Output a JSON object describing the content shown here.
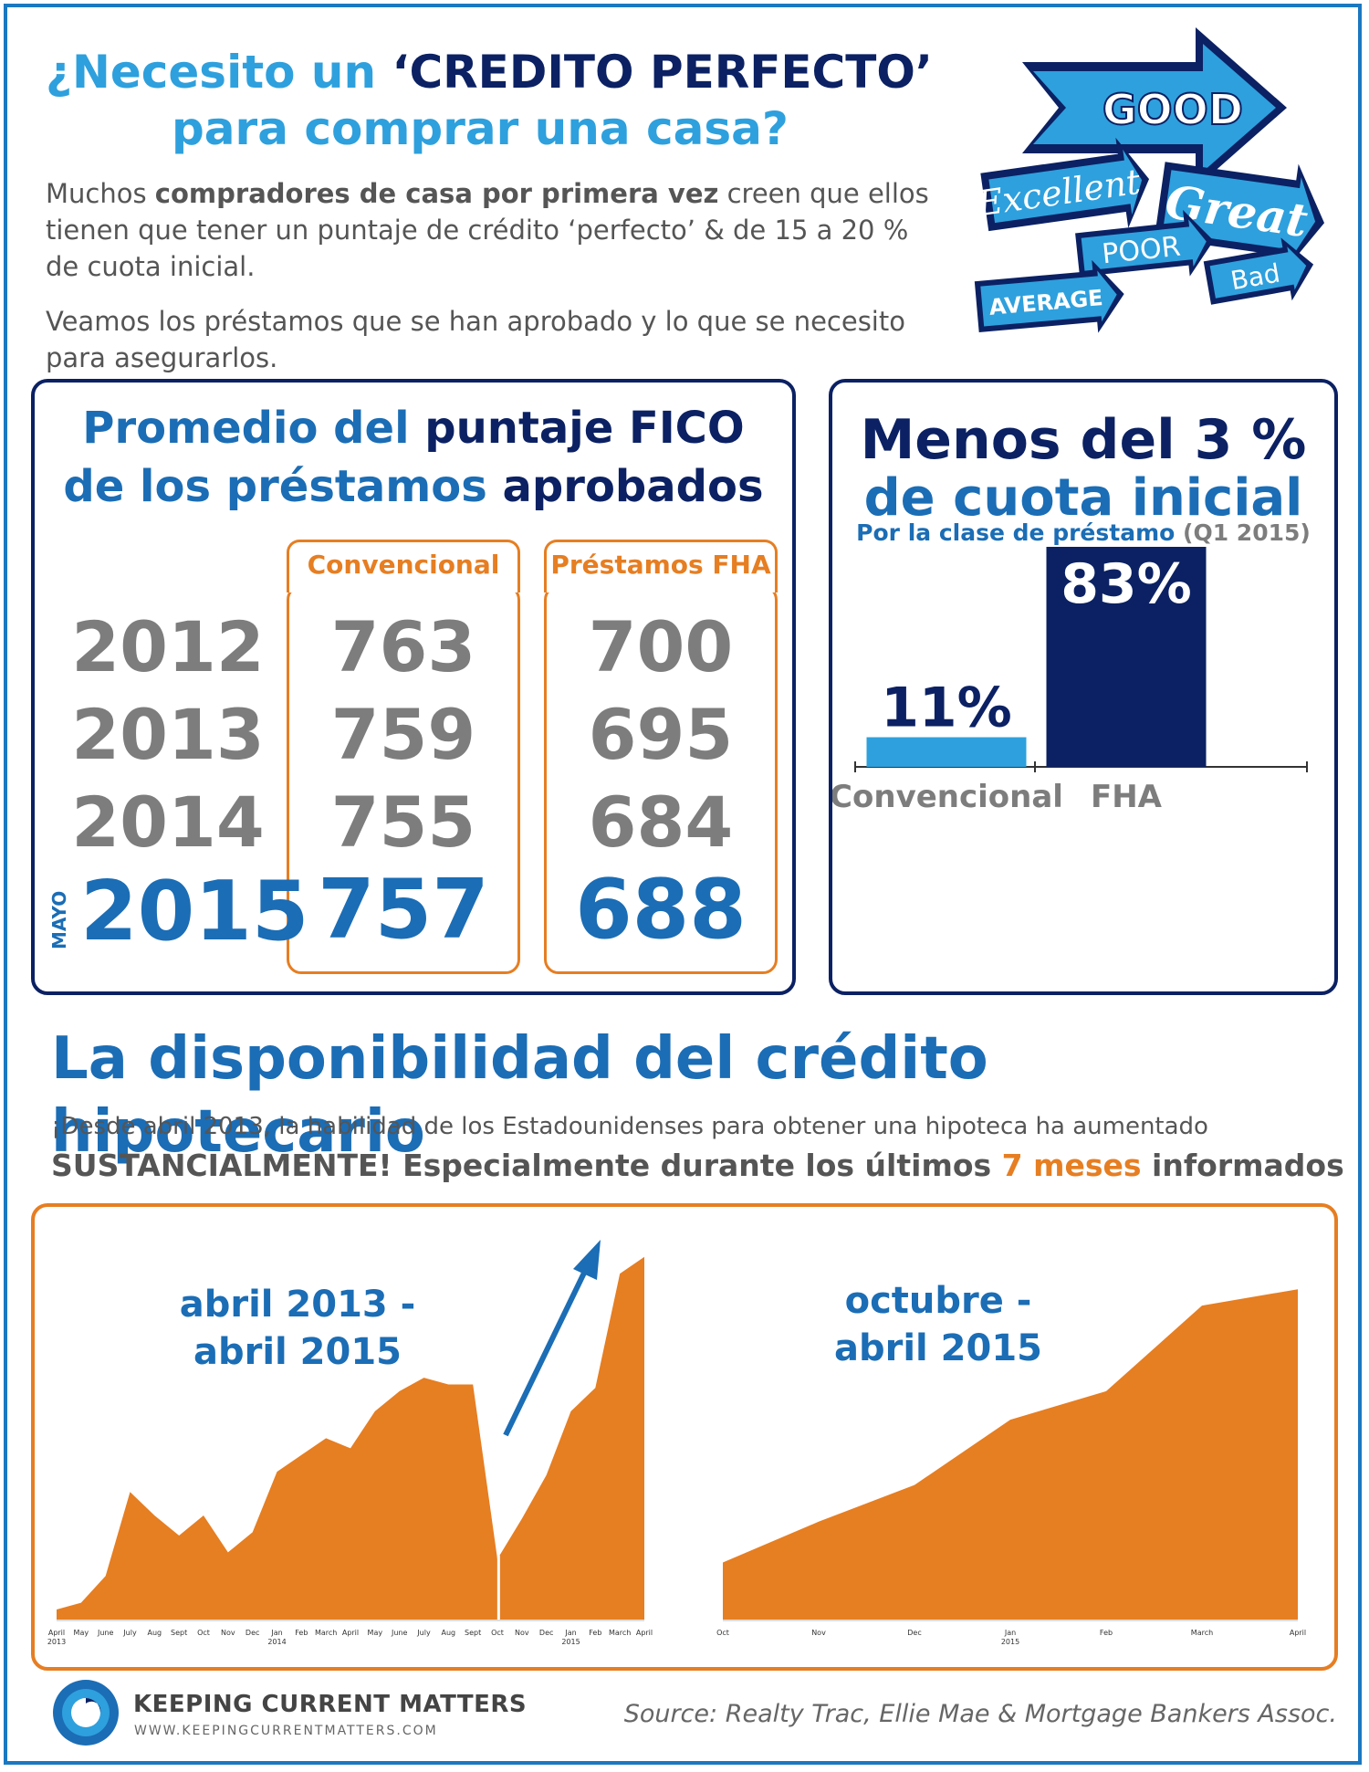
{
  "header": {
    "title_part1": "¿Necesito un ",
    "title_part2": "‘CREDITO PERFECTO’",
    "title_line2": "para comprar una casa?",
    "intro_pre": "Muchos ",
    "intro_bold": "compradores de casa por primera vez",
    "intro_post": " creen que ellos tienen que tener un puntaje de crédito ‘perfecto’ & de 15 a 20 % de cuota inicial.",
    "intro2": "Veamos los préstamos que se han aprobado y lo que se necesito para asegurarlos."
  },
  "badges": {
    "good": "GOOD",
    "excellent": "Excellent",
    "great": "Great",
    "poor": "POOR",
    "bad": "Bad",
    "average": "AVERAGE",
    "colors": {
      "dark": "#0b2163",
      "light": "#2ea0dd"
    }
  },
  "fico": {
    "head_p1": "Promedio del ",
    "head_p2": "puntaje FICO",
    "head_p3": "de los préstamos ",
    "head_p4": "aprobados",
    "col1_header": "Convencional",
    "col2_header": "Préstamos FHA",
    "month_note": "MAYO",
    "rows": [
      {
        "year": "2012",
        "conv": "763",
        "fha": "700"
      },
      {
        "year": "2013",
        "conv": "759",
        "fha": "695"
      },
      {
        "year": "2014",
        "conv": "755",
        "fha": "684"
      },
      {
        "year": "2015",
        "conv": "757",
        "fha": "688"
      }
    ]
  },
  "downpayment": {
    "head1": "Menos del 3 %",
    "head2": "de cuota inicial",
    "sub_p1": "Por la clase de préstamo ",
    "sub_p2": "(Q1 2015)"
  },
  "availability": {
    "title": "La disponibilidad del crédito  hipotecario",
    "text1": "¡Desde abril 2013, la habilidad de los Estadounidenses para obtener una hipoteca ha aumentado",
    "text2_p1": "SUSTANCIALMENTE! Especialmente durante los últimos ",
    "text2_p2": "7 meses",
    "text2_p3": " informados"
  },
  "chart_data": [
    {
      "type": "bar",
      "categories": [
        "Convencional",
        "FHA"
      ],
      "values": [
        11,
        83
      ],
      "value_labels": [
        "11%",
        "83%"
      ],
      "colors": [
        "#2ea0dd",
        "#0b2163"
      ],
      "ylim": [
        0,
        100
      ]
    },
    {
      "type": "area",
      "title": "abril 2013 - abril 2015",
      "x": [
        "April 2013",
        "May",
        "June",
        "July",
        "Aug",
        "Sept",
        "Oct",
        "Nov",
        "Dec",
        "Jan 2014",
        "Feb",
        "March",
        "April",
        "May",
        "June",
        "July",
        "Aug",
        "Sept",
        "Oct",
        "Nov",
        "Dec",
        "Jan 2015",
        "Feb",
        "March",
        "April"
      ],
      "values": [
        3,
        5,
        13,
        38,
        31,
        25,
        31,
        20,
        26,
        44,
        49,
        54,
        51,
        62,
        68,
        72,
        70,
        70,
        18,
        30,
        43,
        62,
        69,
        103,
        108
      ],
      "ylim": [
        0,
        112
      ],
      "color": "#e67e22",
      "arrow_color": "#1b6db5"
    },
    {
      "type": "area",
      "title": "octubre - abril 2015",
      "x": [
        "Oct",
        "Nov",
        "Dec",
        "Jan 2015",
        "Feb",
        "March",
        "April"
      ],
      "values": [
        14,
        24,
        33,
        49,
        56,
        77,
        81
      ],
      "ylim": [
        0,
        90
      ],
      "color": "#e67e22"
    }
  ],
  "footer": {
    "logo_name": "KEEPING CURRENT MATTERS",
    "logo_url": "WWW.KEEPINGCURRENTMATTERS.COM",
    "source": "Source: Realty Trac, Ellie Mae & Mortgage Bankers Assoc."
  }
}
